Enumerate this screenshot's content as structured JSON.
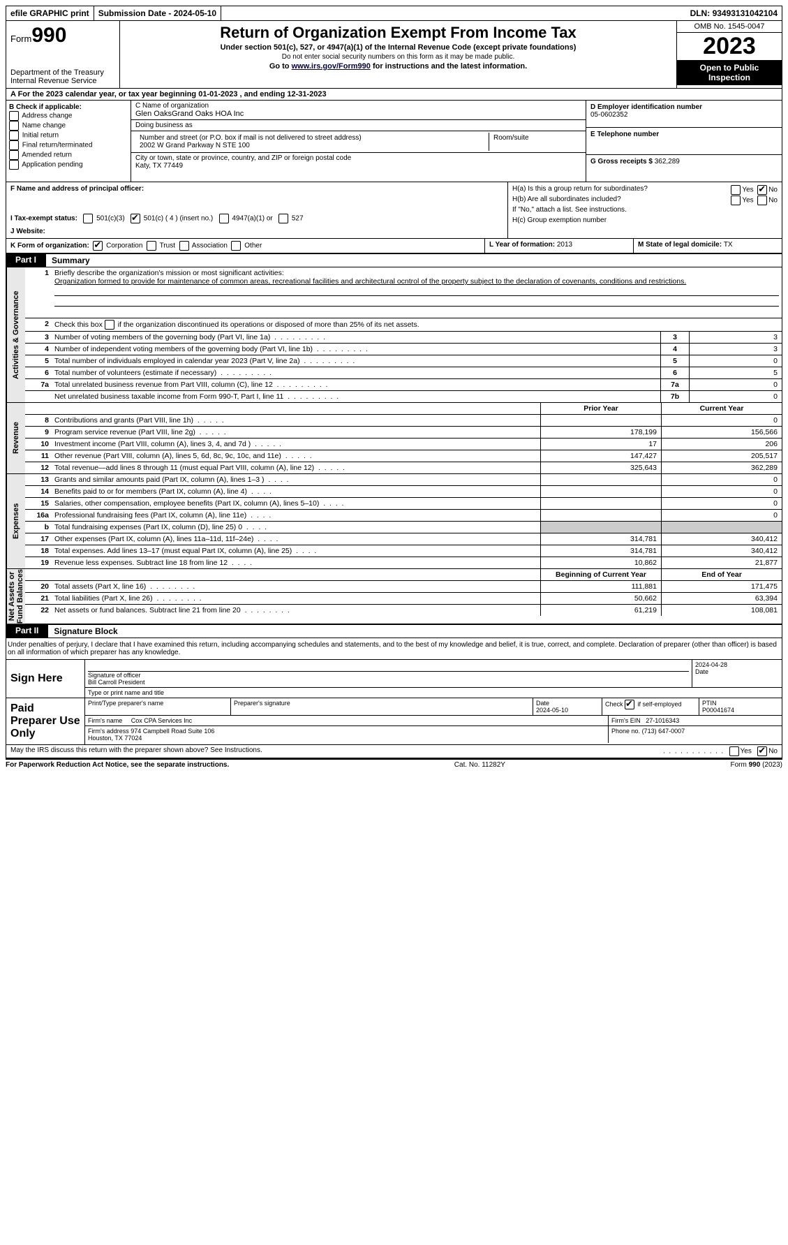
{
  "topbar": {
    "efile": "efile GRAPHIC print",
    "submission_label": "Submission Date - ",
    "submission_date": "2024-05-10",
    "dln_label": "DLN: ",
    "dln": "93493131042104"
  },
  "header": {
    "form_label": "Form",
    "form_number": "990",
    "dept": "Department of the Treasury\nInternal Revenue Service",
    "title": "Return of Organization Exempt From Income Tax",
    "sub1": "Under section 501(c), 527, or 4947(a)(1) of the Internal Revenue Code (except private foundations)",
    "sub2": "Do not enter social security numbers on this form as it may be made public.",
    "sub3_pre": "Go to ",
    "sub3_link": "www.irs.gov/Form990",
    "sub3_post": " for instructions and the latest information.",
    "omb": "OMB No. 1545-0047",
    "year": "2023",
    "inspection": "Open to Public\nInspection"
  },
  "row_a": {
    "text_pre": "A  For the 2023 calendar year, or tax year beginning ",
    "begin": "01-01-2023",
    "mid": "   , and ending ",
    "end": "12-31-2023"
  },
  "col_b": {
    "header": "B Check if applicable:",
    "opts": [
      "Address change",
      "Name change",
      "Initial return",
      "Final return/terminated",
      "Amended return",
      "Application pending"
    ]
  },
  "col_c": {
    "name_label": "C Name of organization",
    "name": "Glen OaksGrand Oaks HOA Inc",
    "dba_label": "Doing business as",
    "dba": "",
    "addr_label": "Number and street (or P.O. box if mail is not delivered to street address)",
    "addr": "2002 W Grand Parkway N STE 100",
    "room_label": "Room/suite",
    "city_label": "City or town, state or province, country, and ZIP or foreign postal code",
    "city": "Katy, TX  77449"
  },
  "col_de": {
    "d_label": "D Employer identification number",
    "d_val": "05-0602352",
    "e_label": "E Telephone number",
    "e_val": "",
    "g_label": "G Gross receipts $ ",
    "g_val": "362,289"
  },
  "f": {
    "label": "F  Name and address of principal officer:",
    "val": ""
  },
  "h": {
    "a_label": "H(a)  Is this a group return for subordinates?",
    "a_yes": false,
    "a_no": true,
    "b_label": "H(b)  Are all subordinates included?",
    "b_yes": false,
    "b_no": false,
    "b_note": "If \"No,\" attach a list. See instructions.",
    "c_label": "H(c)  Group exemption number "
  },
  "i": {
    "label": "I    Tax-exempt status:",
    "opt1": "501(c)(3)",
    "opt2_checked": true,
    "opt2": "501(c) ( 4 ) (insert no.)",
    "opt3": "4947(a)(1) or",
    "opt4": "527"
  },
  "j": {
    "label": "J   Website:",
    "val": ""
  },
  "k": {
    "label": "K Form of organization:",
    "corp_checked": true,
    "opts": [
      "Corporation",
      "Trust",
      "Association",
      "Other"
    ]
  },
  "l": {
    "label": "L Year of formation: ",
    "val": "2013"
  },
  "m": {
    "label": "M State of legal domicile: ",
    "val": "TX"
  },
  "part1": {
    "num": "Part I",
    "title": "Summary"
  },
  "summary": {
    "q1_label": "Briefly describe the organization's mission or most significant activities:",
    "q1_text": "Organization formed to provide for maintenance of common areas, recreational facilities and architectural ocntrol of the property subject to the declaration of covenants, conditions and restrictions.",
    "q2": "Check this box      if the organization discontinued its operations or disposed of more than 25% of its net assets.",
    "lines_gov": [
      {
        "n": "3",
        "d": "Number of voting members of the governing body (Part VI, line 1a)",
        "bl": "3",
        "v": "3"
      },
      {
        "n": "4",
        "d": "Number of independent voting members of the governing body (Part VI, line 1b)",
        "bl": "4",
        "v": "3"
      },
      {
        "n": "5",
        "d": "Total number of individuals employed in calendar year 2023 (Part V, line 2a)",
        "bl": "5",
        "v": "0"
      },
      {
        "n": "6",
        "d": "Total number of volunteers (estimate if necessary)",
        "bl": "6",
        "v": "5"
      },
      {
        "n": "7a",
        "d": "Total unrelated business revenue from Part VIII, column (C), line 12",
        "bl": "7a",
        "v": "0"
      },
      {
        "n": "",
        "d": "Net unrelated business taxable income from Form 990-T, Part I, line 11",
        "bl": "7b",
        "v": "0"
      }
    ],
    "prior_hdr": "Prior Year",
    "current_hdr": "Current Year",
    "lines_rev": [
      {
        "n": "8",
        "d": "Contributions and grants (Part VIII, line 1h)",
        "p": "",
        "c": "0"
      },
      {
        "n": "9",
        "d": "Program service revenue (Part VIII, line 2g)",
        "p": "178,199",
        "c": "156,566"
      },
      {
        "n": "10",
        "d": "Investment income (Part VIII, column (A), lines 3, 4, and 7d )",
        "p": "17",
        "c": "206"
      },
      {
        "n": "11",
        "d": "Other revenue (Part VIII, column (A), lines 5, 6d, 8c, 9c, 10c, and 11e)",
        "p": "147,427",
        "c": "205,517"
      },
      {
        "n": "12",
        "d": "Total revenue—add lines 8 through 11 (must equal Part VIII, column (A), line 12)",
        "p": "325,643",
        "c": "362,289"
      }
    ],
    "lines_exp": [
      {
        "n": "13",
        "d": "Grants and similar amounts paid (Part IX, column (A), lines 1–3 )",
        "p": "",
        "c": "0"
      },
      {
        "n": "14",
        "d": "Benefits paid to or for members (Part IX, column (A), line 4)",
        "p": "",
        "c": "0"
      },
      {
        "n": "15",
        "d": "Salaries, other compensation, employee benefits (Part IX, column (A), lines 5–10)",
        "p": "",
        "c": "0"
      },
      {
        "n": "16a",
        "d": "Professional fundraising fees (Part IX, column (A), line 11e)",
        "p": "",
        "c": "0"
      },
      {
        "n": "b",
        "d": "Total fundraising expenses (Part IX, column (D), line 25) 0",
        "p": "grey",
        "c": "grey"
      },
      {
        "n": "17",
        "d": "Other expenses (Part IX, column (A), lines 11a–11d, 11f–24e)",
        "p": "314,781",
        "c": "340,412"
      },
      {
        "n": "18",
        "d": "Total expenses. Add lines 13–17 (must equal Part IX, column (A), line 25)",
        "p": "314,781",
        "c": "340,412"
      },
      {
        "n": "19",
        "d": "Revenue less expenses. Subtract line 18 from line 12",
        "p": "10,862",
        "c": "21,877"
      }
    ],
    "begin_hdr": "Beginning of Current Year",
    "end_hdr": "End of Year",
    "lines_net": [
      {
        "n": "20",
        "d": "Total assets (Part X, line 16)",
        "p": "111,881",
        "c": "171,475"
      },
      {
        "n": "21",
        "d": "Total liabilities (Part X, line 26)",
        "p": "50,662",
        "c": "63,394"
      },
      {
        "n": "22",
        "d": "Net assets or fund balances. Subtract line 21 from line 20",
        "p": "61,219",
        "c": "108,081"
      }
    ],
    "vtabs": [
      "Activities & Governance",
      "Revenue",
      "Expenses",
      "Net Assets or\nFund Balances"
    ]
  },
  "part2": {
    "num": "Part II",
    "title": "Signature Block"
  },
  "declaration": "Under penalties of perjury, I declare that I have examined this return, including accompanying schedules and statements, and to the best of my knowledge and belief, it is true, correct, and complete. Declaration of preparer (other than officer) is based on all information of which preparer has any knowledge.",
  "sign": {
    "label": "Sign Here",
    "officer_sig_label": "Signature of officer",
    "officer_name": "Bill Carroll  President",
    "officer_title_label": "Type or print name and title",
    "date": "2024-04-28",
    "date_label": "Date"
  },
  "paid": {
    "label": "Paid Preparer Use Only",
    "name_label": "Print/Type preparer's name",
    "sig_label": "Preparer's signature",
    "date_label": "Date",
    "date": "2024-05-10",
    "check_label": "Check        if self-employed",
    "check": true,
    "ptin_label": "PTIN",
    "ptin": "P00041674",
    "firm_name_label": "Firm's name",
    "firm_name": "Cox CPA Services Inc",
    "firm_ein_label": "Firm's EIN",
    "firm_ein": "27-1016343",
    "firm_addr_label": "Firm's address",
    "firm_addr": "974 Campbell Road Suite 106\nHouston, TX  77024",
    "phone_label": "Phone no.",
    "phone": "(713) 647-0007"
  },
  "irs_discuss": {
    "text": "May the IRS discuss this return with the preparer shown above? See Instructions.",
    "yes": false,
    "no": true
  },
  "footer": {
    "left": "For Paperwork Reduction Act Notice, see the separate instructions.",
    "mid": "Cat. No. 11282Y",
    "right": "Form 990 (2023)"
  }
}
